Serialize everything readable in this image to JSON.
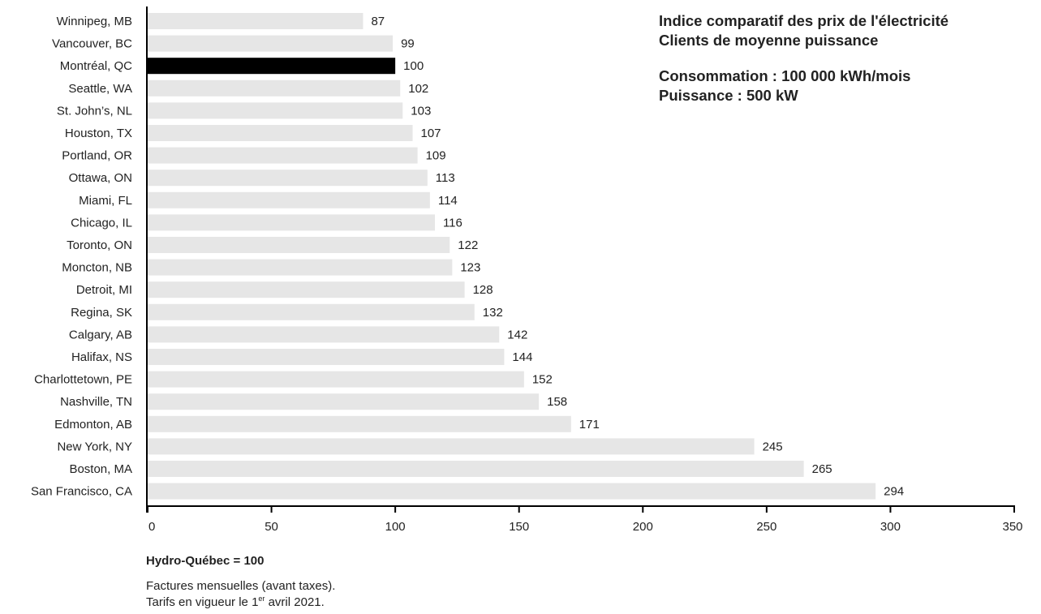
{
  "chart_data": {
    "type": "bar",
    "orientation": "horizontal",
    "title": "Indice comparatif des prix de l'électricité",
    "subtitle": "Clients de moyenne puissance",
    "parameters": [
      "Consommation : 100 000 kWh/mois",
      "Puissance : 500 kW"
    ],
    "categories": [
      "Winnipeg, MB",
      "Vancouver, BC",
      "Montréal, QC",
      "Seattle, WA",
      "St. John’s, NL",
      "Houston, TX",
      "Portland, OR",
      "Ottawa, ON",
      "Miami, FL",
      "Chicago, IL",
      "Toronto, ON",
      "Moncton, NB",
      "Detroit, MI",
      "Regina, SK",
      "Calgary, AB",
      "Halifax, NS",
      "Charlottetown, PE",
      "Nashville, TN",
      "Edmonton, AB",
      "New York, NY",
      "Boston, MA",
      "San Francisco, CA"
    ],
    "values": [
      87,
      99,
      100,
      102,
      103,
      107,
      109,
      113,
      114,
      116,
      122,
      123,
      128,
      132,
      142,
      144,
      152,
      158,
      171,
      245,
      265,
      294
    ],
    "highlight": "Montréal, QC",
    "xlim": [
      0,
      350
    ],
    "xticks": [
      0,
      50,
      100,
      150,
      200,
      250,
      300,
      350
    ],
    "grid": false,
    "colors": {
      "bar": "#e6e6e6",
      "highlight_bar": "#000000",
      "axis": "#000000",
      "text": "#222222"
    }
  },
  "notes": {
    "reference": "Hydro-Québec = 100",
    "line1": "Factures mensuelles (avant taxes).",
    "line2_before": "Tarifs en vigueur le 1",
    "line2_sup": "er",
    "line2_after": " avril 2021."
  }
}
